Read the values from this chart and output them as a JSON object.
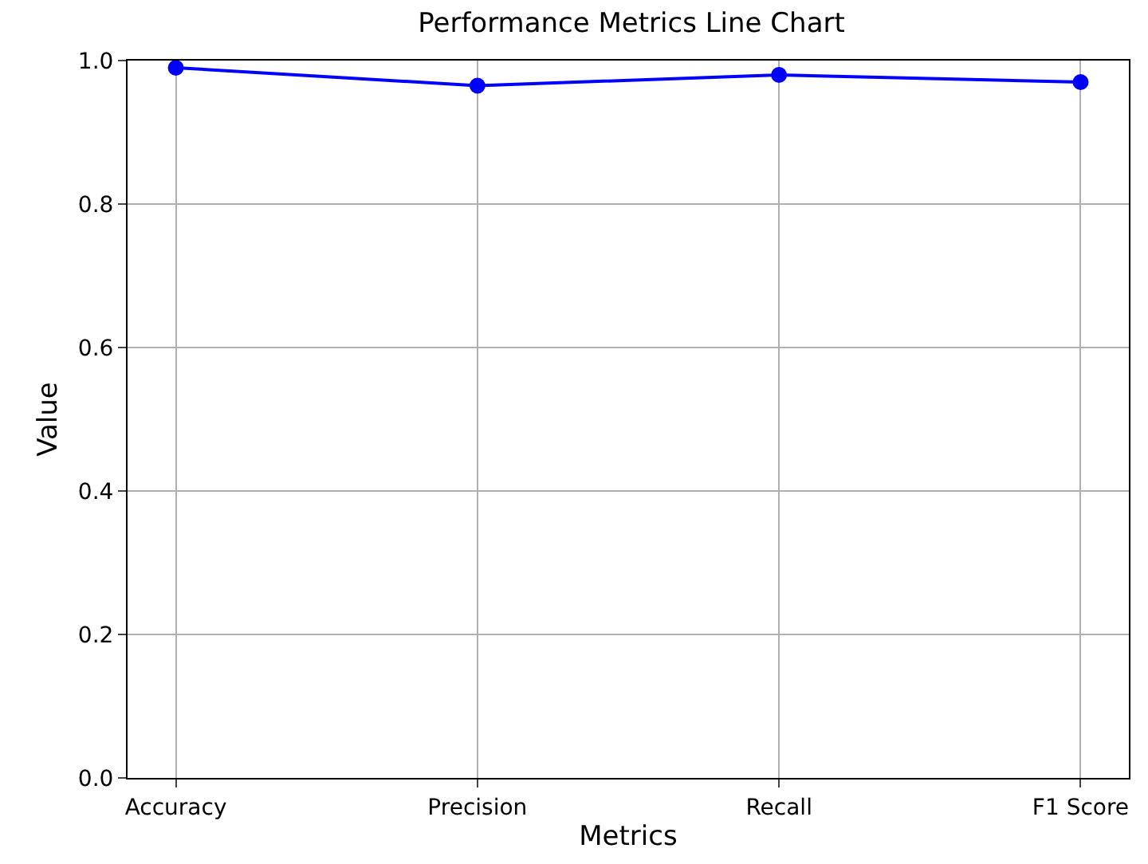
{
  "chart_data": {
    "type": "line",
    "title": "Performance Metrics Line Chart",
    "xlabel": "Metrics",
    "ylabel": "Value",
    "categories": [
      "Accuracy",
      "Precision",
      "Recall",
      "F1 Score"
    ],
    "series": [
      {
        "color": "#0000ff",
        "values": [
          0.99,
          0.965,
          0.98,
          0.97
        ]
      }
    ],
    "ylim": [
      0,
      1
    ],
    "yticks": [
      {
        "value": 0,
        "label": "0.0"
      },
      {
        "value": 0.2,
        "label": "0.2"
      },
      {
        "value": 0.4,
        "label": "0.4"
      },
      {
        "value": 0.6,
        "label": "0.6"
      },
      {
        "value": 0.8,
        "label": "0.8"
      },
      {
        "value": 1,
        "label": "1.0"
      }
    ],
    "grid": true,
    "marker": "circle",
    "line_style": "solid"
  }
}
